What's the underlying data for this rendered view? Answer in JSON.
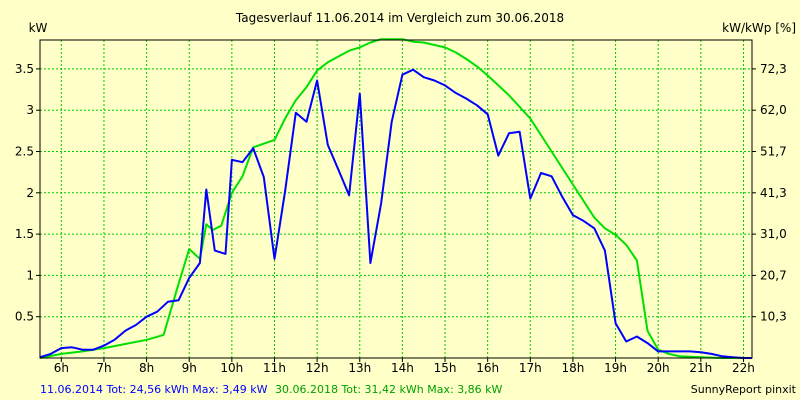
{
  "chart_data": {
    "type": "line",
    "title": "Tagesverlauf 11.06.2014 im Vergleich zum 30.06.2018",
    "ylabel": "kW",
    "ylabel_right": "kW/kWp [%]",
    "xlim": [
      5.5,
      22.2
    ],
    "ylim": [
      0,
      3.85
    ],
    "x_ticks": [
      6,
      7,
      8,
      9,
      10,
      11,
      12,
      13,
      14,
      15,
      16,
      17,
      18,
      19,
      20,
      21,
      22
    ],
    "x_tick_labels": [
      "6h",
      "7h",
      "8h",
      "9h",
      "10h",
      "11h",
      "12h",
      "13h",
      "14h",
      "15h",
      "16h",
      "17h",
      "18h",
      "19h",
      "20h",
      "21h",
      "22h"
    ],
    "y_ticks": [
      0.5,
      1,
      1.5,
      2,
      2.5,
      3,
      3.5
    ],
    "y_tick_labels": [
      "0.5",
      "1",
      "1.5",
      "2",
      "2.5",
      "3",
      "3.5"
    ],
    "y_right_ticks": [
      0.5,
      1.0,
      1.5,
      2.0,
      2.5,
      3.0,
      3.5
    ],
    "y_right_tick_labels": [
      "10,3",
      "20,7",
      "31,0",
      "41,3",
      "51,7",
      "62,0",
      "72,3"
    ],
    "grid": true,
    "series": [
      {
        "name": "11.06.2014",
        "color": "#0000ff",
        "x": [
          5.5,
          5.75,
          6.0,
          6.25,
          6.5,
          6.75,
          7.0,
          7.25,
          7.5,
          7.75,
          8.0,
          8.25,
          8.5,
          8.75,
          9.0,
          9.25,
          9.4,
          9.6,
          9.85,
          10.0,
          10.25,
          10.5,
          10.75,
          11.0,
          11.25,
          11.5,
          11.75,
          12.0,
          12.25,
          12.5,
          12.75,
          13.0,
          13.25,
          13.5,
          13.75,
          14.0,
          14.25,
          14.5,
          14.75,
          15.0,
          15.25,
          15.5,
          15.75,
          16.0,
          16.25,
          16.5,
          16.75,
          17.0,
          17.25,
          17.5,
          17.75,
          18.0,
          18.25,
          18.5,
          18.75,
          19.0,
          19.25,
          19.5,
          19.75,
          20.0,
          20.25,
          20.5,
          20.75,
          21.0,
          21.25,
          21.5,
          21.75,
          22.0,
          22.2
        ],
        "y": [
          0.01,
          0.05,
          0.12,
          0.13,
          0.1,
          0.1,
          0.15,
          0.22,
          0.33,
          0.4,
          0.5,
          0.56,
          0.68,
          0.7,
          0.97,
          1.15,
          2.04,
          1.3,
          1.26,
          2.4,
          2.37,
          2.54,
          2.19,
          1.2,
          2.02,
          2.97,
          2.86,
          3.36,
          2.58,
          2.28,
          1.97,
          3.2,
          1.15,
          1.87,
          2.86,
          3.43,
          3.49,
          3.4,
          3.36,
          3.3,
          3.21,
          3.14,
          3.06,
          2.95,
          2.45,
          2.72,
          2.74,
          1.93,
          2.24,
          2.2,
          1.95,
          1.73,
          1.66,
          1.57,
          1.3,
          0.42,
          0.2,
          0.26,
          0.18,
          0.08,
          0.08,
          0.08,
          0.08,
          0.07,
          0.05,
          0.02,
          0.01,
          0.0,
          0.0
        ]
      },
      {
        "name": "30.06.2018",
        "color": "#00e000",
        "x": [
          5.5,
          6.0,
          6.5,
          7.0,
          7.5,
          8.0,
          8.4,
          8.75,
          9.0,
          9.25,
          9.4,
          9.55,
          9.75,
          10.0,
          10.25,
          10.5,
          11.0,
          11.25,
          11.5,
          11.75,
          12.0,
          12.25,
          12.5,
          12.75,
          13.0,
          13.25,
          13.5,
          13.75,
          14.0,
          14.25,
          14.5,
          14.75,
          15.0,
          15.25,
          15.5,
          15.75,
          16.0,
          16.5,
          17.0,
          17.5,
          18.0,
          18.5,
          18.75,
          19.0,
          19.25,
          19.5,
          19.75,
          20.0,
          20.25,
          20.5,
          21.0,
          21.5,
          22.0,
          22.2
        ],
        "y": [
          0.0,
          0.05,
          0.08,
          0.12,
          0.17,
          0.22,
          0.28,
          0.9,
          1.32,
          1.2,
          1.62,
          1.55,
          1.6,
          2.0,
          2.2,
          2.55,
          2.64,
          2.9,
          3.12,
          3.28,
          3.48,
          3.58,
          3.65,
          3.72,
          3.76,
          3.82,
          3.86,
          3.86,
          3.86,
          3.83,
          3.82,
          3.79,
          3.76,
          3.7,
          3.62,
          3.53,
          3.42,
          3.18,
          2.9,
          2.5,
          2.1,
          1.7,
          1.57,
          1.49,
          1.37,
          1.18,
          0.33,
          0.1,
          0.05,
          0.02,
          0.01,
          0.0,
          0.0,
          0.0
        ]
      }
    ],
    "legend": {
      "items": [
        {
          "text": "11.06.2014 Tot: 24,56 kWh Max: 3,49 kW",
          "color": "#0000ff"
        },
        {
          "text": "30.06.2018 Tot: 31,42 kWh Max: 3,86 kW",
          "color": "#00e000"
        }
      ],
      "placement": "bottom-left"
    },
    "credit": "SunnyReport pinxit"
  },
  "colors": {
    "background": "#ffffc8",
    "grid": "#00c800",
    "axis": "#000000"
  }
}
